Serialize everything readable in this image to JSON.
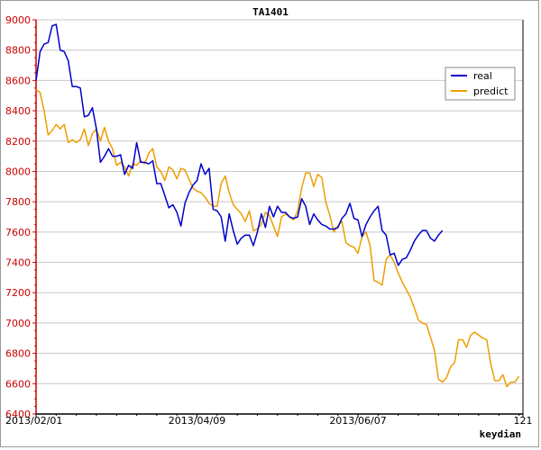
{
  "chart_data": {
    "type": "line",
    "title": "TA1401",
    "xlabel": "keydian",
    "ylabel": "",
    "ylim": [
      6400,
      9000
    ],
    "xlim": [
      0,
      121
    ],
    "yticks": [
      6400,
      6600,
      6800,
      7000,
      7200,
      7400,
      7600,
      7800,
      8000,
      8200,
      8400,
      8600,
      8800,
      9000
    ],
    "xticks": [
      {
        "value": 0,
        "label": "2013/02/01"
      },
      {
        "value": 40,
        "label": "2013/04/09"
      },
      {
        "value": 80,
        "label": "2013/06/07"
      },
      {
        "value": 121,
        "label": "121"
      }
    ],
    "grid": true,
    "legend": "right",
    "series": [
      {
        "name": "real",
        "color": "#0000cc",
        "values": [
          8600,
          8790,
          8840,
          8850,
          8960,
          8970,
          8800,
          8790,
          8730,
          8560,
          8560,
          8550,
          8360,
          8370,
          8420,
          8280,
          8060,
          8100,
          8150,
          8100,
          8100,
          8110,
          7980,
          8040,
          8020,
          8190,
          8060,
          8060,
          8050,
          8070,
          7920,
          7920,
          7840,
          7760,
          7780,
          7730,
          7640,
          7790,
          7860,
          7910,
          7940,
          8050,
          7980,
          8020,
          7750,
          7740,
          7700,
          7540,
          7720,
          7610,
          7520,
          7560,
          7580,
          7580,
          7510,
          7600,
          7720,
          7630,
          7770,
          7700,
          7770,
          7730,
          7730,
          7700,
          7690,
          7700,
          7820,
          7770,
          7650,
          7720,
          7680,
          7650,
          7640,
          7620,
          7620,
          7630,
          7690,
          7720,
          7790,
          7690,
          7680,
          7570,
          7650,
          7700,
          7740,
          7770,
          7610,
          7580,
          7450,
          7460,
          7380,
          7420,
          7430,
          7480,
          7540,
          7580,
          7610,
          7610,
          7560,
          7540,
          7580,
          7610
        ]
      },
      {
        "name": "predict",
        "color": "#ee9e00",
        "values": [
          8540,
          8520,
          8400,
          8240,
          8270,
          8310,
          8280,
          8310,
          8190,
          8210,
          8190,
          8210,
          8280,
          8170,
          8250,
          8280,
          8200,
          8290,
          8200,
          8150,
          8040,
          8060,
          8030,
          7970,
          8050,
          8040,
          8070,
          8050,
          8120,
          8150,
          8030,
          8000,
          7940,
          8030,
          8010,
          7950,
          8020,
          8010,
          7950,
          7890,
          7870,
          7860,
          7830,
          7790,
          7770,
          7770,
          7920,
          7970,
          7860,
          7780,
          7750,
          7720,
          7670,
          7740,
          7610,
          7620,
          7650,
          7730,
          7710,
          7640,
          7570,
          7700,
          7720,
          7700,
          7680,
          7740,
          7890,
          7990,
          7990,
          7900,
          7980,
          7960,
          7800,
          7710,
          7600,
          7640,
          7670,
          7530,
          7510,
          7500,
          7460,
          7570,
          7600,
          7510,
          7280,
          7270,
          7250,
          7420,
          7450,
          7400,
          7330,
          7270,
          7220,
          7170,
          7100,
          7020,
          7000,
          6990,
          6910,
          6820,
          6630,
          6610,
          6640,
          6710,
          6740,
          6890,
          6890,
          6840,
          6920,
          6940,
          6920,
          6900,
          6890,
          6730,
          6620,
          6620,
          6660,
          6580,
          6610,
          6610,
          6650
        ]
      }
    ]
  }
}
